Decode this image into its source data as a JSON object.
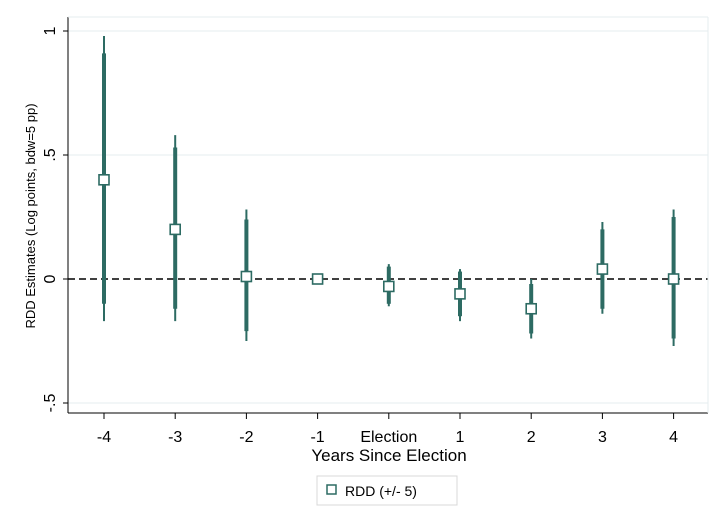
{
  "chart_data": {
    "type": "scatter",
    "xlabel": "Years Since Election",
    "ylabel": "RDD Estimates (Log points, bdw=5 pp)",
    "categories": [
      "-4",
      "-3",
      "-2",
      "-1",
      "Election",
      "1",
      "2",
      "3",
      "4"
    ],
    "y_ticks": [
      {
        "value": 1,
        "label": "1"
      },
      {
        "value": 0.5,
        "label": ".5"
      },
      {
        "value": 0,
        "label": "0"
      },
      {
        "value": -0.5,
        "label": "-.5"
      }
    ],
    "ylim": [
      -0.53,
      1.05
    ],
    "grid": true,
    "reference_line": {
      "y": 0,
      "style": "dashed"
    },
    "legend": {
      "position": "bottom-center",
      "label": "RDD (+/- 5)"
    },
    "series": [
      {
        "name": "RDD (+/- 5)",
        "color": "#2d6b63",
        "points": [
          {
            "x": "-4",
            "estimate": 0.4,
            "ci95": [
              -0.17,
              0.98
            ],
            "ci90": [
              -0.1,
              0.91
            ]
          },
          {
            "x": "-3",
            "estimate": 0.2,
            "ci95": [
              -0.17,
              0.58
            ],
            "ci90": [
              -0.12,
              0.53
            ]
          },
          {
            "x": "-2",
            "estimate": 0.01,
            "ci95": [
              -0.25,
              0.28
            ],
            "ci90": [
              -0.21,
              0.24
            ]
          },
          {
            "x": "-1",
            "estimate": 0.0,
            "ci95": [
              0.0,
              0.0
            ],
            "ci90": [
              0.0,
              0.0
            ]
          },
          {
            "x": "Election",
            "estimate": -0.03,
            "ci95": [
              -0.11,
              0.06
            ],
            "ci90": [
              -0.1,
              0.05
            ]
          },
          {
            "x": "1",
            "estimate": -0.06,
            "ci95": [
              -0.17,
              0.04
            ],
            "ci90": [
              -0.15,
              0.03
            ]
          },
          {
            "x": "2",
            "estimate": -0.12,
            "ci95": [
              -0.24,
              0.0
            ],
            "ci90": [
              -0.22,
              -0.02
            ]
          },
          {
            "x": "3",
            "estimate": 0.04,
            "ci95": [
              -0.14,
              0.23
            ],
            "ci90": [
              -0.12,
              0.2
            ]
          },
          {
            "x": "4",
            "estimate": 0.0,
            "ci95": [
              -0.27,
              0.28
            ],
            "ci90": [
              -0.24,
              0.25
            ]
          }
        ]
      }
    ]
  }
}
